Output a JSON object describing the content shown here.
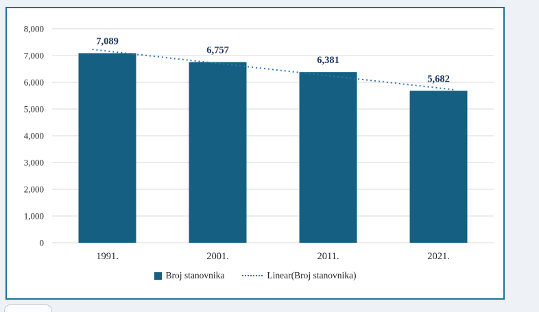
{
  "page": {
    "background": "#eef1f6",
    "frame_border_color": "#1d7198"
  },
  "chart_data": {
    "type": "bar",
    "categories": [
      "1991.",
      "2001.",
      "2011.",
      "2021."
    ],
    "values": [
      7089,
      6757,
      6381,
      5682
    ],
    "value_labels": [
      "7,089",
      "6,757",
      "6,381",
      "5,682"
    ],
    "series_label": "Broj stanovnika",
    "trend_label": "Linear(Broj stanovnika)",
    "trend_type": "linear",
    "ylim": [
      0,
      8000
    ],
    "ytick_step": 1000,
    "ytick_labels": [
      "0",
      "1,000",
      "2,000",
      "3,000",
      "4,000",
      "5,000",
      "6,000",
      "7,000",
      "8,000"
    ],
    "grid": true,
    "legend_position": "bottom",
    "bar_color": "#156082",
    "trend_color": "#2e75b6",
    "label_color": "#1f3864",
    "axis_text_color": "#262626",
    "gridline_color": "#d9d9d9"
  }
}
